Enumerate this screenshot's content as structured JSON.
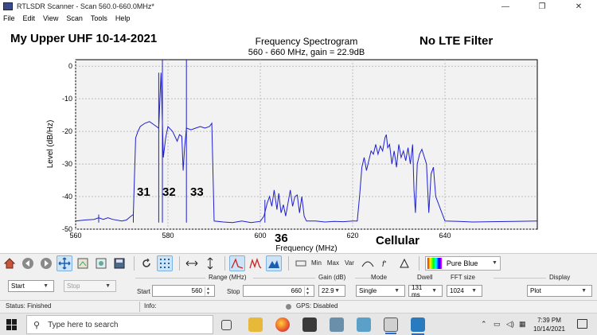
{
  "window": {
    "title": "RTLSDR Scanner - Scan 560.0-660.0MHz*",
    "controls": [
      "—",
      "❐",
      "✕"
    ]
  },
  "menu": [
    "File",
    "Edit",
    "View",
    "Scan",
    "Tools",
    "Help"
  ],
  "overlay": {
    "top_left": "My Upper UHF 10-14-2021",
    "top_right": "No LTE Filter",
    "channel_31": "31",
    "channel_32": "32",
    "channel_33": "33",
    "channel_36": "36",
    "cellular": "Cellular"
  },
  "chart_data": {
    "type": "line",
    "title": "Frequency Spectrogram",
    "subtitle": "560 - 660 MHz, gain = 22.9dB",
    "xlabel": "Frequency (MHz)",
    "ylabel": "Level (dB/Hz)",
    "xlim": [
      560,
      660
    ],
    "ylim": [
      -50,
      2
    ],
    "x_ticks": [
      560,
      580,
      600,
      620,
      640
    ],
    "y_ticks": [
      0,
      -10,
      -20,
      -30,
      -40,
      -50
    ],
    "grid": true,
    "line_color": "#2020d0",
    "series": [
      {
        "x": [
          560,
          562,
          564,
          565,
          566,
          567,
          568,
          570,
          571,
          572,
          572.5,
          573,
          573.5,
          574,
          575,
          576,
          577,
          578,
          578.5,
          579,
          579.5,
          580,
          581,
          582,
          582.5,
          583,
          583.3,
          583.6,
          584,
          585,
          586,
          587,
          588,
          589,
          589.5,
          590,
          592,
          594,
          596,
          598,
          600,
          600.8,
          601.5,
          602,
          602.5,
          603,
          603.6,
          604,
          604.5,
          605,
          605.5,
          606,
          606.5,
          607,
          607.5,
          608,
          608.5,
          609,
          609.5,
          610,
          612,
          614,
          616,
          618,
          620,
          621,
          621.5,
          622,
          622.5,
          623,
          623.5,
          624,
          624.5,
          625,
          625.5,
          626,
          626.5,
          627,
          627.3,
          627.6,
          628,
          628.5,
          629,
          629.5,
          630,
          630.5,
          631,
          631.5,
          632,
          632.5,
          633,
          633.3,
          633.6,
          634,
          634.5,
          635,
          636,
          636.5,
          637,
          637.5,
          638,
          640,
          643,
          646,
          650,
          655,
          660
        ],
        "y": [
          -47.5,
          -47.2,
          -47,
          -46.5,
          -47,
          -46.5,
          -47,
          -47.5,
          -47.2,
          -46,
          -45.5,
          -22,
          -20,
          -18.5,
          -17.5,
          -17,
          -18,
          -19,
          -2,
          -28,
          -22,
          -18.5,
          -20,
          -23,
          -21,
          -21.5,
          -32,
          -25,
          -19,
          -19.5,
          -19,
          -18.5,
          -19,
          -18.5,
          -17.5,
          -47.5,
          -47.8,
          -48,
          -47.5,
          -48,
          -47.6,
          -46,
          -42,
          -40,
          -43,
          -38,
          -44,
          -39,
          -45,
          -42.5,
          -46,
          -42,
          -38,
          -43,
          -40,
          -39.5,
          -45,
          -40,
          -46,
          -47.5,
          -47.5,
          -47.8,
          -47.6,
          -47.7,
          -47.5,
          -47.5,
          -40,
          -31,
          -28,
          -32,
          -29,
          -26,
          -27,
          -24,
          -27,
          -24.5,
          -26,
          -22,
          -21,
          -25,
          -24,
          -30,
          -26,
          -31,
          -24,
          -28,
          -26,
          -29,
          -25,
          -30,
          -24,
          -38,
          -45,
          -30,
          -27,
          -25.5,
          -30,
          -45,
          -33,
          -31,
          -40,
          -47.5,
          -47.6,
          -47.8,
          -47.7,
          -47.6,
          -47.5
        ]
      }
    ],
    "spikes": [
      {
        "x": 565,
        "y": -45.5
      },
      {
        "x": 572.5,
        "y": -44.5
      },
      {
        "x": 578,
        "y": -2
      },
      {
        "x": 578.8,
        "y": 2
      },
      {
        "x": 584,
        "y": 2
      },
      {
        "x": 601,
        "y": -41
      }
    ]
  },
  "toolbar": {
    "icons": [
      "home-icon",
      "back-icon",
      "forward-icon",
      "pan-icon",
      "configure-icon",
      "edit-icon",
      "save-icon",
      "refresh-icon",
      "grid-icon",
      "zoom-in-icon",
      "zoom-out-icon",
      "peak-icon",
      "multi-peak-icon",
      "fill-icon"
    ],
    "labels": {
      "min": "Min",
      "max": "Max",
      "var": "Var"
    },
    "colormap": "Pure Blue"
  },
  "controls": {
    "start_btn": "Start",
    "stop_btn": "Stop",
    "range_label": "Range (MHz)",
    "start_label": "Start",
    "start_value": "560",
    "stop_label": "Stop",
    "stop_value": "660",
    "gain_label": "Gain (dB)",
    "gain_value": "22.9",
    "mode_label": "Mode",
    "mode_value": "Single",
    "dwell_label": "Dwell",
    "dwell_value": "131 ms",
    "fft_label": "FFT size",
    "fft_value": "1024",
    "display_label": "Display",
    "display_value": "Plot"
  },
  "status": {
    "status": "Status: Finished",
    "info": "Info:",
    "gps": "GPS: Disabled"
  },
  "taskbar": {
    "search_placeholder": "Type here to search",
    "time": "7:39 PM",
    "date": "10/14/2021"
  }
}
